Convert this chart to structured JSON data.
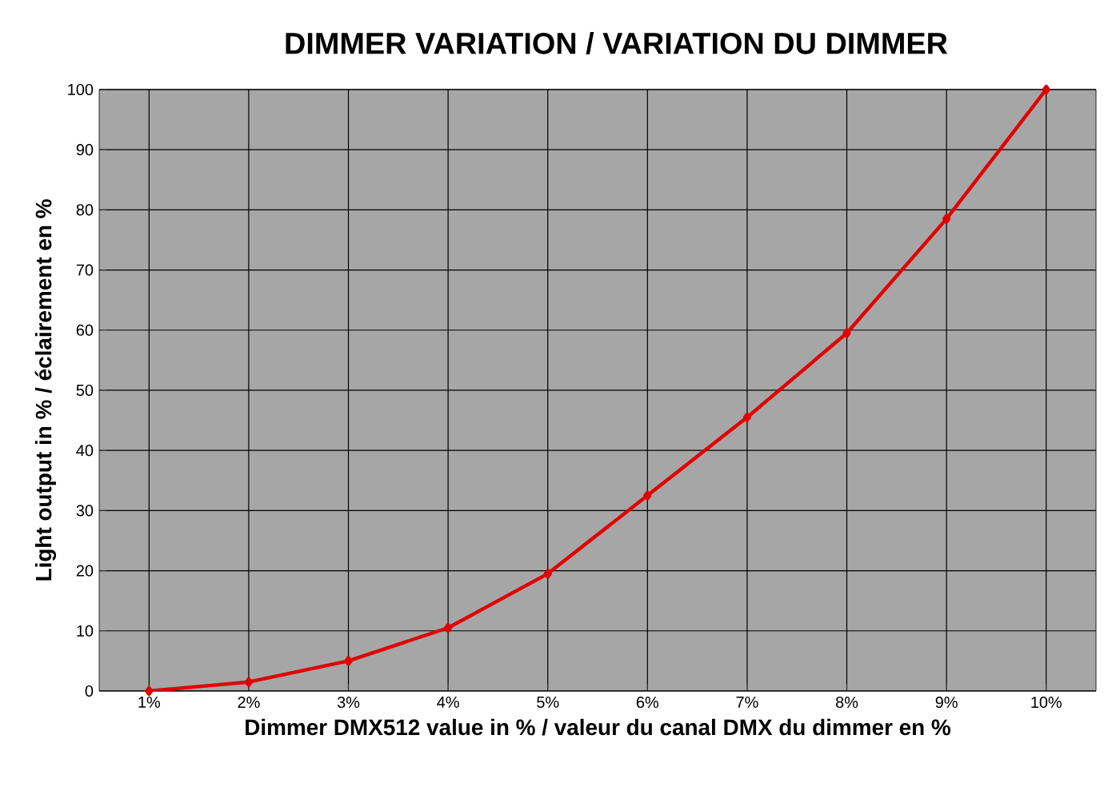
{
  "chart_data": {
    "type": "line",
    "title": "DIMMER VARIATION / VARIATION DU DIMMER",
    "xlabel": "Dimmer DMX512 value in % / valeur du canal DMX du dimmer en %",
    "ylabel": "Light output in % / éclairement en %",
    "categories": [
      "1%",
      "2%",
      "3%",
      "4%",
      "5%",
      "6%",
      "7%",
      "8%",
      "9%",
      "10%"
    ],
    "series": [
      {
        "color": "#e00000",
        "values": [
          0,
          1.5,
          5,
          10.5,
          19.5,
          32.5,
          45.5,
          59.5,
          78.5,
          100
        ]
      }
    ],
    "ylim": [
      0,
      100
    ],
    "yticks": [
      0,
      10,
      20,
      30,
      40,
      50,
      60,
      70,
      80,
      90,
      100
    ],
    "grid": true,
    "marker": "diamond",
    "line_style": "solid"
  }
}
